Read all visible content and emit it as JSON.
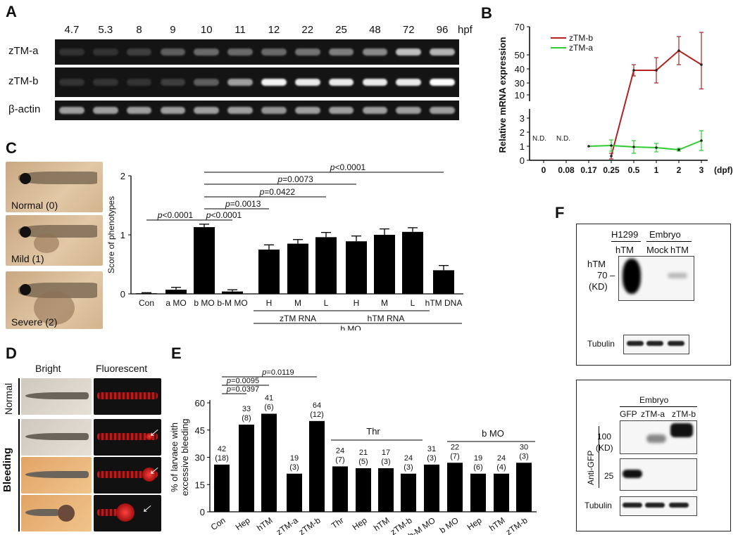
{
  "panel_A": {
    "letter": "A",
    "hpf_labels": [
      "4.7",
      "5.3",
      "8",
      "9",
      "10",
      "11",
      "12",
      "22",
      "25",
      "48",
      "72",
      "96"
    ],
    "hpf_unit": "hpf",
    "rows": [
      {
        "label": "zTM-a",
        "intensity": [
          0.05,
          0.05,
          0.1,
          0.25,
          0.3,
          0.3,
          0.3,
          0.35,
          0.4,
          0.45,
          0.7,
          0.65
        ]
      },
      {
        "label": "zTM-b",
        "intensity": [
          0.05,
          0.05,
          0.05,
          0.1,
          0.25,
          0.55,
          0.95,
          0.9,
          0.9,
          0.9,
          0.9,
          1.0
        ]
      },
      {
        "label": "β-actin",
        "intensity": [
          0.55,
          0.55,
          0.55,
          0.55,
          0.55,
          0.55,
          0.5,
          0.55,
          0.55,
          0.55,
          0.55,
          0.55
        ]
      }
    ]
  },
  "panel_B": {
    "letter": "B",
    "ylabel": "Relative mRNA expression",
    "x_unit": "(dpf)",
    "x_ticks": [
      "0",
      "0.08",
      "0.17",
      "0.25",
      "0.5",
      "1",
      "2",
      "3"
    ],
    "upper_y_ticks": [
      "10",
      "30",
      "40",
      "50",
      "70"
    ],
    "lower_y_ticks": [
      "0",
      "1",
      "2",
      "3"
    ],
    "nd": "N.D.",
    "legend": [
      {
        "name": "zTM-b",
        "color": "#b22222"
      },
      {
        "name": "zTM-a",
        "color": "#2ecc2e"
      }
    ],
    "chart_data": {
      "type": "line",
      "x": [
        "0",
        "0.08",
        "0.17",
        "0.25",
        "0.5",
        "1",
        "2",
        "3"
      ],
      "series": [
        {
          "name": "zTM-b",
          "values": [
            null,
            null,
            null,
            0.3,
            39,
            39,
            53,
            43
          ],
          "errors": [
            null,
            null,
            null,
            0.2,
            4,
            9,
            10,
            23
          ]
        },
        {
          "name": "zTM-a",
          "values": [
            null,
            null,
            1.0,
            1.05,
            0.95,
            0.9,
            0.75,
            1.4
          ],
          "errors": [
            null,
            null,
            0,
            0.4,
            0.45,
            0.3,
            0.1,
            0.7
          ]
        }
      ]
    }
  },
  "panel_C": {
    "letter": "C",
    "photo_labels": [
      "Normal (0)",
      "Mild (1)",
      "Severe (2)"
    ],
    "ylabel": "Score of phenotypes",
    "y_ticks": [
      "0",
      "1",
      "2"
    ],
    "categories": [
      "Con",
      "a MO",
      "b MO",
      "b-M MO",
      "H",
      "M",
      "L",
      "H",
      "M",
      "L",
      "hTM DNA"
    ],
    "chart_data": {
      "type": "bar",
      "categories": [
        "Con",
        "a MO",
        "b MO",
        "b-M MO",
        "H",
        "M",
        "L",
        "H",
        "M",
        "L",
        "hTM DNA"
      ],
      "values": [
        0.01,
        0.07,
        1.13,
        0.04,
        0.75,
        0.85,
        0.96,
        0.89,
        1.0,
        1.05,
        0.4
      ],
      "errors": [
        0.01,
        0.04,
        0.05,
        0.03,
        0.08,
        0.07,
        0.08,
        0.09,
        0.1,
        0.07,
        0.08
      ],
      "ylabel": "Score of phenotypes",
      "ylim": [
        0,
        2
      ]
    },
    "group_labels": {
      "ztm": "zTM RNA",
      "htm": "hTM RNA",
      "bmo": "b MO"
    },
    "pvalues": [
      {
        "text": "<0.0001",
        "from": 0,
        "to": 2
      },
      {
        "text": "<0.0001",
        "from": 2,
        "to": 3
      },
      {
        "text": "=0.0013",
        "from": 2,
        "to": 4
      },
      {
        "text": "=0.0422",
        "from": 2,
        "to": 6
      },
      {
        "text": "=0.0073",
        "from": 2,
        "to": 7
      },
      {
        "text": "<0.0001",
        "from": 2,
        "to": 10
      }
    ],
    "p_letter": "p"
  },
  "panel_D": {
    "letter": "D",
    "col_labels": [
      "Bright",
      "Fluorescent"
    ],
    "row_labels": [
      "Normal",
      "Bleeding"
    ]
  },
  "panel_E": {
    "letter": "E",
    "ylabel_line1": "% of larvaee with",
    "ylabel_line2": "excessive bleeding",
    "y_ticks": [
      "0",
      "15",
      "30",
      "45",
      "60"
    ],
    "chart_data": {
      "type": "bar",
      "categories": [
        "Con",
        "Hep",
        "hTM",
        "zTM-a",
        "zTM-b",
        "Thr",
        "Hep",
        "hTM",
        "zTM-b",
        "b-M MO",
        "b MO",
        "Hep",
        "hTM",
        "zTM-b"
      ],
      "values": [
        26,
        48,
        54,
        21,
        50,
        25,
        24,
        24,
        21,
        26,
        27,
        21,
        21,
        27
      ],
      "n_top": [
        "42",
        "33",
        "41",
        "19",
        "64",
        "24",
        "21",
        "17",
        "24",
        "31",
        "22",
        "19",
        "24",
        "30"
      ],
      "n_bottom": [
        "(18)",
        "(8)",
        "(6)",
        "(3)",
        "(12)",
        "(7)",
        "(5)",
        "(3)",
        "(3)",
        "(3)",
        "(7)",
        "(6)",
        "(4)",
        "(3)"
      ],
      "ylabel": "% of larvaee with excessive bleeding",
      "ylim": [
        0,
        60
      ]
    },
    "group_labels": {
      "thr": "Thr",
      "bmo": "b MO"
    },
    "pvalues": [
      {
        "text": "=0.0397",
        "to": 1
      },
      {
        "text": "=0.0095",
        "to": 2
      },
      {
        "text": "=0.0119",
        "to": 4
      }
    ],
    "p_letter": "p"
  },
  "panel_F": {
    "letter": "F",
    "top": {
      "h1299": "H1299",
      "embryo": "Embryo",
      "lanes": [
        "hTM",
        "Mock",
        "hTM"
      ],
      "side_label": "hTM",
      "marker": "70",
      "unit": "(KD)",
      "loading": "Tubulin"
    },
    "bottom": {
      "embryo": "Embryo",
      "lanes": [
        "GFP",
        "zTM-a",
        "zTM-b"
      ],
      "side_label": "Anti-GFP",
      "marker1": "100",
      "unit": "(KD)",
      "marker2": "25",
      "loading": "Tubulin"
    }
  }
}
